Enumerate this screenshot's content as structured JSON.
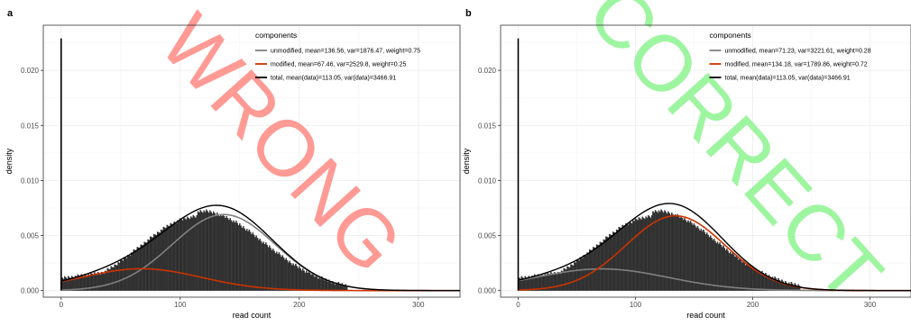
{
  "chart_data": [
    {
      "type": "histogram",
      "panel_label": "a",
      "watermark": "WRONG",
      "watermark_color": "#ff9a94",
      "xlabel": "read count",
      "ylabel": "density",
      "xlim": [
        -15,
        335
      ],
      "ylim": [
        -0.0006,
        0.0241
      ],
      "x_ticks": [
        0,
        100,
        200,
        300
      ],
      "y_ticks": [
        0.0,
        0.005,
        0.01,
        0.015,
        0.02
      ],
      "y_tick_labels": [
        "0.000",
        "0.005",
        "0.010",
        "0.015",
        "0.020"
      ],
      "grid": true,
      "legend_position": "top-right",
      "legend": {
        "title": "components",
        "entries": [
          {
            "label": "unmodified, mean=136.56, var=1876.47, weight=0.75",
            "color": "#808080"
          },
          {
            "label": "modified, mean=67.46, var=2529.8, weight=0.25",
            "color": "#cc3300"
          },
          {
            "label": "total, mean(data)=113.05, var(data)=3466.91",
            "color": "#000000"
          }
        ]
      },
      "series": [
        {
          "name": "unmodified",
          "mean": 136.56,
          "var": 1876.47,
          "weight": 0.75,
          "color": "#808080"
        },
        {
          "name": "modified",
          "mean": 67.46,
          "var": 2529.8,
          "weight": 0.25,
          "color": "#cc3300"
        },
        {
          "name": "total",
          "mean": 113.05,
          "var": 3466.91,
          "color": "#000000"
        }
      ],
      "zero_spike_density": 0.0229
    },
    {
      "type": "histogram",
      "panel_label": "b",
      "watermark": "CORRECT",
      "watermark_color": "#9ef5a0",
      "xlabel": "read count",
      "ylabel": "density",
      "xlim": [
        -15,
        335
      ],
      "ylim": [
        -0.0006,
        0.0241
      ],
      "x_ticks": [
        0,
        100,
        200,
        300
      ],
      "y_ticks": [
        0.0,
        0.005,
        0.01,
        0.015,
        0.02
      ],
      "y_tick_labels": [
        "0.000",
        "0.005",
        "0.010",
        "0.015",
        "0.020"
      ],
      "grid": true,
      "legend_position": "top-right",
      "legend": {
        "title": "components",
        "entries": [
          {
            "label": "unmodified, mean=71.23, var=3221.61, weight=0.28",
            "color": "#808080"
          },
          {
            "label": "modified, mean=134.18, var=1789.86, weight=0.72",
            "color": "#cc3300"
          },
          {
            "label": "total, mean(data)=113.05, var(data)=3466.91",
            "color": "#000000"
          }
        ]
      },
      "series": [
        {
          "name": "unmodified",
          "mean": 71.23,
          "var": 3221.61,
          "weight": 0.28,
          "color": "#808080"
        },
        {
          "name": "modified",
          "mean": 134.18,
          "var": 1789.86,
          "weight": 0.72,
          "color": "#cc3300"
        },
        {
          "name": "total",
          "mean": 113.05,
          "var": 3466.91,
          "color": "#000000"
        }
      ],
      "zero_spike_density": 0.0229
    }
  ]
}
